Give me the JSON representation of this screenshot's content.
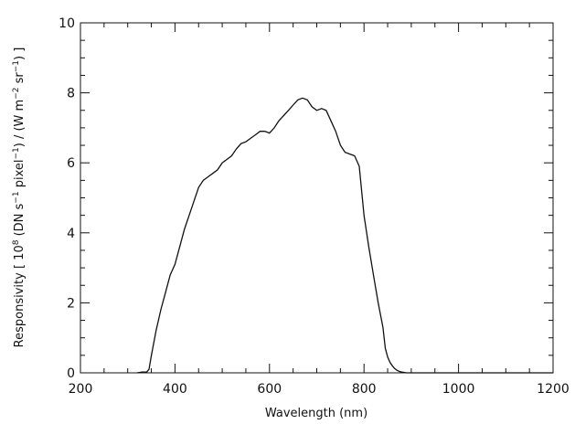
{
  "chart_data": {
    "type": "line",
    "title": "",
    "xlabel": "Wavelength (nm)",
    "ylabel": "Responsivity [ 10^8 (DN s^-1 pixel^-1) / (W m^-2 sr^-1) ]",
    "ylabel_parts": {
      "a": "Responsivity [ 10",
      "b": "8",
      "c": " (DN s",
      "d": "−1",
      "e": " pixel",
      "f": "−1",
      "g": ") / (W m",
      "h": "−2",
      "i": " sr",
      "j": "−1",
      "k": ") ]"
    },
    "xlim": [
      200,
      1200
    ],
    "ylim": [
      0,
      10
    ],
    "xticks": [
      200,
      400,
      600,
      800,
      1000,
      1200
    ],
    "yticks": [
      0,
      2,
      4,
      6,
      8,
      10
    ],
    "xtick_labels": [
      "200",
      "400",
      "600",
      "800",
      "1000",
      "1200"
    ],
    "ytick_labels": [
      "0",
      "2",
      "4",
      "6",
      "8",
      "10"
    ],
    "grid": false,
    "legend": "none",
    "series": [
      {
        "x": [
          320,
          330,
          340,
          345,
          350,
          360,
          370,
          380,
          390,
          400,
          410,
          420,
          430,
          440,
          450,
          460,
          470,
          480,
          490,
          500,
          510,
          520,
          530,
          540,
          550,
          560,
          570,
          580,
          590,
          600,
          610,
          620,
          630,
          640,
          650,
          660,
          670,
          680,
          690,
          700,
          710,
          720,
          730,
          740,
          750,
          760,
          770,
          780,
          790,
          800,
          810,
          820,
          830,
          840,
          845,
          850,
          855,
          860,
          865,
          870,
          875,
          880,
          890,
          900,
          920,
          940,
          960,
          980,
          1000,
          1050,
          1100,
          1150,
          1200
        ],
        "y": [
          0.0,
          0.02,
          0.02,
          0.1,
          0.5,
          1.2,
          1.8,
          2.3,
          2.8,
          3.1,
          3.6,
          4.1,
          4.5,
          4.9,
          5.3,
          5.5,
          5.6,
          5.7,
          5.8,
          6.0,
          6.1,
          6.2,
          6.4,
          6.55,
          6.6,
          6.7,
          6.8,
          6.9,
          6.9,
          6.85,
          7.0,
          7.2,
          7.35,
          7.5,
          7.65,
          7.8,
          7.85,
          7.8,
          7.6,
          7.5,
          7.55,
          7.5,
          7.2,
          6.9,
          6.5,
          6.3,
          6.25,
          6.2,
          5.9,
          4.5,
          3.6,
          2.8,
          2.0,
          1.3,
          0.7,
          0.45,
          0.3,
          0.2,
          0.12,
          0.07,
          0.04,
          0.02,
          0.0,
          0.0,
          0.0,
          0.0,
          0.0,
          0.0,
          0.0,
          0.0,
          0.0,
          0.0,
          0.0
        ]
      }
    ]
  }
}
